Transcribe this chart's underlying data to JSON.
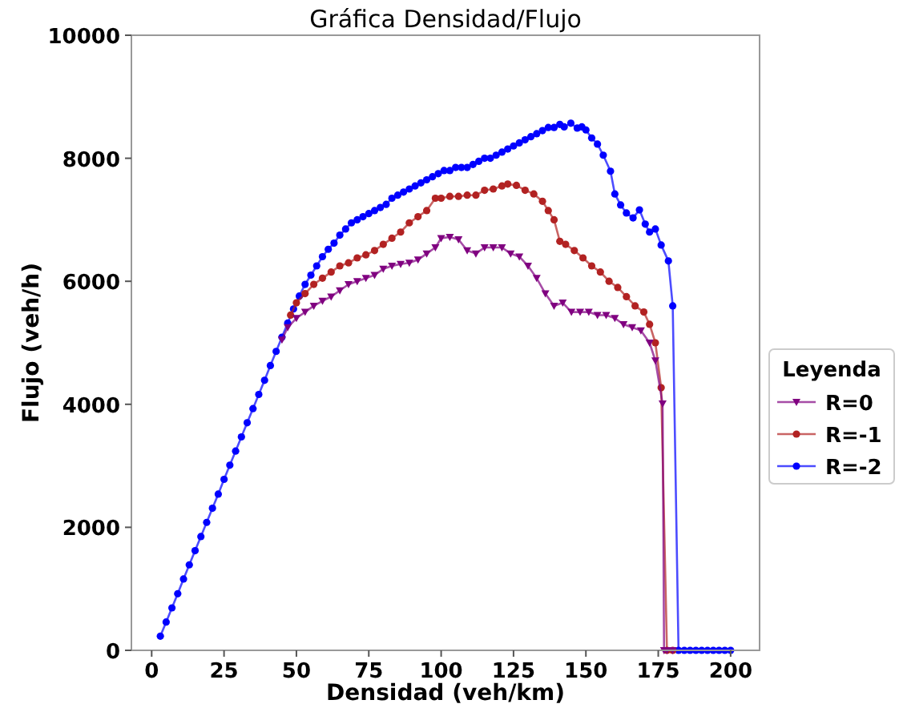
{
  "chart_data": {
    "type": "line",
    "title": "Gráfica Densidad/Flujo",
    "xlabel": "Densidad (veh/km)",
    "ylabel": "Flujo (veh/h)",
    "legend_title": "Leyenda",
    "legend": "right",
    "grid": false,
    "line_style": "solid",
    "xlim": [
      -7,
      210
    ],
    "ylim": [
      0,
      10000
    ],
    "xticks": [
      0,
      25,
      50,
      75,
      100,
      125,
      150,
      175,
      200
    ],
    "yticks": [
      0,
      2000,
      4000,
      6000,
      8000,
      10000
    ],
    "series": [
      {
        "name": "R=0",
        "color": "#800080",
        "marker": "triangle",
        "x": [
          45,
          47,
          50,
          53,
          56,
          59,
          62,
          65,
          68,
          71,
          74,
          77,
          80,
          83,
          86,
          89,
          92,
          95,
          98,
          100,
          103,
          106,
          109,
          112,
          115,
          118,
          121,
          124,
          127,
          130,
          133,
          136,
          139,
          142,
          145,
          148,
          151,
          154,
          157,
          160,
          163,
          166,
          169,
          172,
          174,
          176.5,
          177,
          178,
          180
        ],
        "values": [
          5050,
          5250,
          5400,
          5500,
          5600,
          5680,
          5750,
          5850,
          5950,
          6000,
          6050,
          6100,
          6200,
          6250,
          6280,
          6300,
          6350,
          6450,
          6550,
          6700,
          6720,
          6680,
          6500,
          6450,
          6550,
          6550,
          6550,
          6450,
          6400,
          6250,
          6050,
          5800,
          5600,
          5650,
          5500,
          5500,
          5500,
          5450,
          5450,
          5400,
          5300,
          5250,
          5200,
          5000,
          4710,
          4010,
          0,
          0,
          0
        ]
      },
      {
        "name": "R=-1",
        "color": "#b22222",
        "marker": "circle",
        "x": [
          48,
          50,
          53,
          56,
          59,
          62,
          65,
          68,
          71,
          74,
          77,
          80,
          83,
          86,
          89,
          92,
          95,
          98,
          100,
          103,
          106,
          109,
          112,
          115,
          118,
          121,
          123,
          126,
          129,
          132,
          135,
          137,
          139,
          141,
          143,
          146,
          149,
          152,
          155,
          158,
          161,
          164,
          167,
          170,
          172,
          174,
          176,
          178,
          180
        ],
        "values": [
          5450,
          5650,
          5800,
          5950,
          6050,
          6150,
          6250,
          6300,
          6380,
          6430,
          6500,
          6600,
          6700,
          6800,
          6950,
          7050,
          7150,
          7350,
          7350,
          7380,
          7380,
          7400,
          7400,
          7480,
          7500,
          7550,
          7580,
          7560,
          7480,
          7420,
          7300,
          7150,
          7000,
          6650,
          6600,
          6500,
          6380,
          6250,
          6150,
          6000,
          5900,
          5750,
          5600,
          5500,
          5300,
          5000,
          4270,
          0,
          0
        ]
      },
      {
        "name": "R=-2",
        "color": "#0000ff",
        "marker": "circle",
        "x": [
          3,
          5,
          7,
          9,
          11,
          13,
          15,
          17,
          19,
          21,
          23,
          25,
          27,
          29,
          31,
          33,
          35,
          37,
          39,
          41,
          43,
          45,
          47,
          49,
          51,
          53,
          55,
          57,
          59,
          61,
          63,
          65,
          67,
          69,
          71,
          73,
          75,
          77,
          79,
          81,
          83,
          85,
          87,
          89,
          91,
          93,
          95,
          97,
          99,
          101,
          103,
          105,
          107,
          109,
          111,
          113,
          115,
          117,
          119,
          121,
          123,
          125,
          127,
          129,
          131,
          133,
          135,
          137,
          139,
          141,
          142.5,
          144.8,
          147,
          148.6,
          150,
          152,
          154,
          156,
          158.5,
          160,
          162,
          164,
          166.3,
          168.5,
          170.5,
          172,
          174,
          176,
          178.5,
          180,
          182,
          184,
          186,
          188,
          190,
          192,
          194,
          196,
          198,
          200
        ],
        "values": [
          230,
          460,
          690,
          920,
          1160,
          1390,
          1620,
          1850,
          2080,
          2310,
          2540,
          2780,
          3010,
          3240,
          3470,
          3700,
          3930,
          4160,
          4390,
          4630,
          4860,
          5090,
          5320,
          5550,
          5760,
          5950,
          6100,
          6250,
          6400,
          6520,
          6620,
          6750,
          6850,
          6950,
          7000,
          7050,
          7100,
          7150,
          7200,
          7250,
          7350,
          7400,
          7450,
          7500,
          7550,
          7600,
          7650,
          7700,
          7750,
          7800,
          7800,
          7850,
          7850,
          7850,
          7900,
          7950,
          8000,
          8000,
          8050,
          8100,
          8150,
          8200,
          8250,
          8300,
          8350,
          8400,
          8450,
          8500,
          8500,
          8550,
          8510,
          8570,
          8490,
          8510,
          8460,
          8330,
          8230,
          8050,
          7790,
          7420,
          7240,
          7110,
          7030,
          7160,
          6930,
          6800,
          6850,
          6590,
          6330,
          5600,
          0,
          0,
          0,
          0,
          0,
          0,
          0,
          0,
          0,
          0
        ]
      }
    ]
  }
}
